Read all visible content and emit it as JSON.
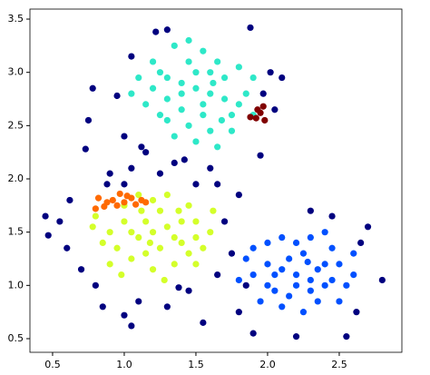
{
  "chart_data": {
    "type": "scatter",
    "xlim": [
      0.342,
      2.937
    ],
    "ylim": [
      0.372,
      3.594
    ],
    "xticks": [
      0.5,
      {
        "value": 1,
        "label": "1.0"
      },
      1.5,
      {
        "value": 2,
        "label": "2.0"
      },
      2.5
    ],
    "yticks": [
      0.5,
      {
        "value": 1,
        "label": "1.0"
      },
      1.5,
      {
        "value": 2,
        "label": "2.0"
      },
      2.5,
      {
        "value": 3,
        "label": "3.0"
      },
      3.5
    ],
    "grid": false,
    "series": [
      {
        "color": "#00007f",
        "x": [
          0.45,
          0.47,
          0.55,
          0.6,
          0.62,
          0.7,
          0.73,
          0.78,
          0.75,
          0.8,
          0.85,
          0.9,
          1.0,
          1.1,
          1.15,
          1.05,
          1.0,
          0.95,
          1.05,
          1.12,
          1.3,
          1.22,
          1.35,
          1.42,
          1.6,
          1.65,
          1.55,
          1.45,
          1.3,
          1.65,
          1.75,
          1.7,
          1.8,
          1.88,
          1.97,
          2.05,
          2.1,
          2.02,
          1.95,
          1.85,
          1.8,
          1.9,
          2.2,
          2.55,
          2.62,
          2.65,
          2.7,
          2.8,
          2.45,
          2.3,
          1.5,
          1.25,
          1.0,
          0.88,
          1.05,
          1.38
        ],
        "values": [
          1.65,
          1.47,
          1.6,
          1.35,
          1.8,
          1.15,
          2.28,
          2.85,
          2.55,
          1.0,
          0.8,
          2.05,
          0.72,
          0.85,
          2.25,
          2.1,
          2.4,
          2.78,
          3.15,
          2.3,
          3.4,
          3.38,
          2.15,
          2.18,
          2.1,
          1.95,
          0.65,
          0.95,
          0.8,
          1.1,
          1.3,
          1.6,
          1.85,
          3.42,
          2.8,
          2.65,
          2.95,
          3.0,
          2.22,
          1.0,
          0.75,
          0.55,
          0.52,
          0.52,
          0.75,
          1.4,
          1.55,
          1.05,
          1.65,
          1.7,
          1.95,
          2.05,
          1.95,
          1.95,
          0.62,
          0.98
        ]
      },
      {
        "color": "#2ee8c8",
        "x": [
          1.5,
          1.4,
          1.6,
          1.3,
          1.7,
          1.45,
          1.55,
          1.35,
          1.25,
          1.2,
          1.15,
          1.3,
          1.45,
          1.6,
          1.75,
          1.85,
          1.9,
          1.8,
          1.65,
          1.5,
          1.4,
          1.55,
          1.7,
          1.35,
          1.5,
          1.65,
          1.1,
          1.2,
          1.45,
          1.6,
          1.75,
          1.9,
          1.25,
          1.05,
          1.55,
          1.4,
          1.62,
          1.3,
          1.68,
          1.8
        ],
        "values": [
          2.85,
          2.9,
          2.8,
          2.75,
          2.95,
          3.1,
          3.2,
          3.25,
          3.0,
          2.85,
          2.7,
          2.55,
          2.5,
          2.45,
          2.6,
          2.8,
          2.95,
          3.05,
          3.1,
          3.0,
          2.65,
          2.6,
          2.75,
          2.4,
          2.35,
          2.3,
          2.95,
          3.1,
          3.3,
          3.0,
          2.45,
          2.6,
          2.6,
          2.8,
          2.7,
          2.8,
          2.9,
          2.95,
          2.55,
          2.7
        ]
      },
      {
        "color": "#d4ff2a",
        "x": [
          1.2,
          1.1,
          1.3,
          1.0,
          1.4,
          1.25,
          1.15,
          0.9,
          0.8,
          0.85,
          1.5,
          1.55,
          1.45,
          1.35,
          1.2,
          1.05,
          0.95,
          1.0,
          1.1,
          1.3,
          1.4,
          1.6,
          1.5,
          1.25,
          1.35,
          1.15,
          1.05,
          0.9,
          1.45,
          1.2,
          1.62,
          0.78,
          1.28,
          1.38,
          0.98,
          1.12,
          1.5,
          1.18
        ],
        "values": [
          1.5,
          1.45,
          1.55,
          1.6,
          1.4,
          1.7,
          1.3,
          1.5,
          1.65,
          1.4,
          1.6,
          1.35,
          1.75,
          1.2,
          1.15,
          1.25,
          1.35,
          1.75,
          1.85,
          1.85,
          1.6,
          1.5,
          1.2,
          1.35,
          1.45,
          1.6,
          1.5,
          1.2,
          1.3,
          1.8,
          1.7,
          1.55,
          1.05,
          1.7,
          1.1,
          1.7,
          1.45,
          1.4
        ]
      },
      {
        "color": "#0050ff",
        "x": [
          2.2,
          2.1,
          2.3,
          2.0,
          2.4,
          2.25,
          2.15,
          1.9,
          1.85,
          2.5,
          2.55,
          2.45,
          2.35,
          2.05,
          1.95,
          2.0,
          2.1,
          2.3,
          2.4,
          2.6,
          2.5,
          2.25,
          2.15,
          2.35,
          2.05,
          1.9,
          2.45,
          2.2,
          2.6,
          2.1,
          2.3,
          1.8,
          2.2,
          2.4,
          2.0,
          2.28
        ],
        "values": [
          1.1,
          1.15,
          1.05,
          1.2,
          1.0,
          1.3,
          0.9,
          1.1,
          1.25,
          1.2,
          1.0,
          1.35,
          0.85,
          0.95,
          0.85,
          1.4,
          1.45,
          1.45,
          1.2,
          1.1,
          0.85,
          0.75,
          1.25,
          1.15,
          1.1,
          1.35,
          1.05,
          1.4,
          1.3,
          0.8,
          0.95,
          1.05,
          1.0,
          1.5,
          1.0,
          1.22
        ]
      },
      {
        "color": "#ff6a00",
        "x": [
          0.8,
          0.82,
          0.88,
          0.92,
          0.97,
          1.0,
          1.05,
          1.08,
          1.12,
          1.15,
          0.86,
          0.95,
          1.02
        ],
        "values": [
          1.72,
          1.82,
          1.78,
          1.8,
          1.86,
          1.78,
          1.82,
          1.76,
          1.8,
          1.78,
          1.74,
          1.75,
          1.84
        ]
      },
      {
        "color": "#800000",
        "x": [
          1.92,
          1.95,
          1.97,
          1.93,
          1.98,
          1.88
        ],
        "values": [
          2.57,
          2.62,
          2.68,
          2.65,
          2.55,
          2.58
        ]
      }
    ]
  }
}
